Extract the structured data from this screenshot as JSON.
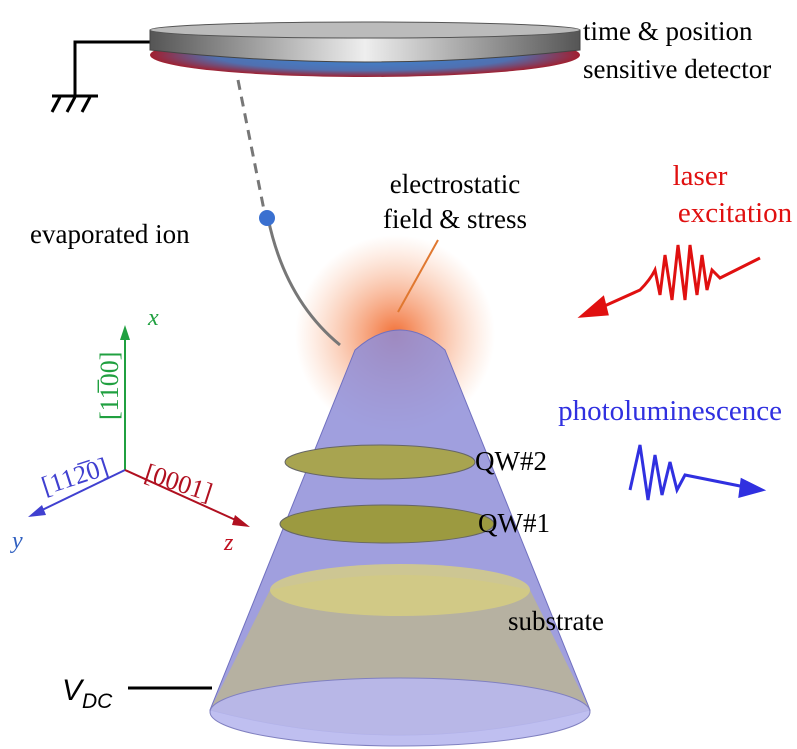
{
  "detector": {
    "line1": "time & position",
    "line2": "sensitive detector"
  },
  "field": {
    "line1": "electrostatic",
    "line2": "field & stress"
  },
  "laser": {
    "line1": "laser",
    "line2": "excitation"
  },
  "ion": "evaporated ion",
  "photoluminescence": "photoluminescence",
  "axes": {
    "x": "x",
    "x_direction": "[11̅00]",
    "y": "y",
    "y_direction": "[112̅0]",
    "z": "z",
    "z_direction": "[0001]"
  },
  "layers": {
    "qw2": "QW#2",
    "qw1": "QW#1",
    "substrate": "substrate"
  },
  "voltage": {
    "symbol": "V",
    "subscript": "DC"
  }
}
